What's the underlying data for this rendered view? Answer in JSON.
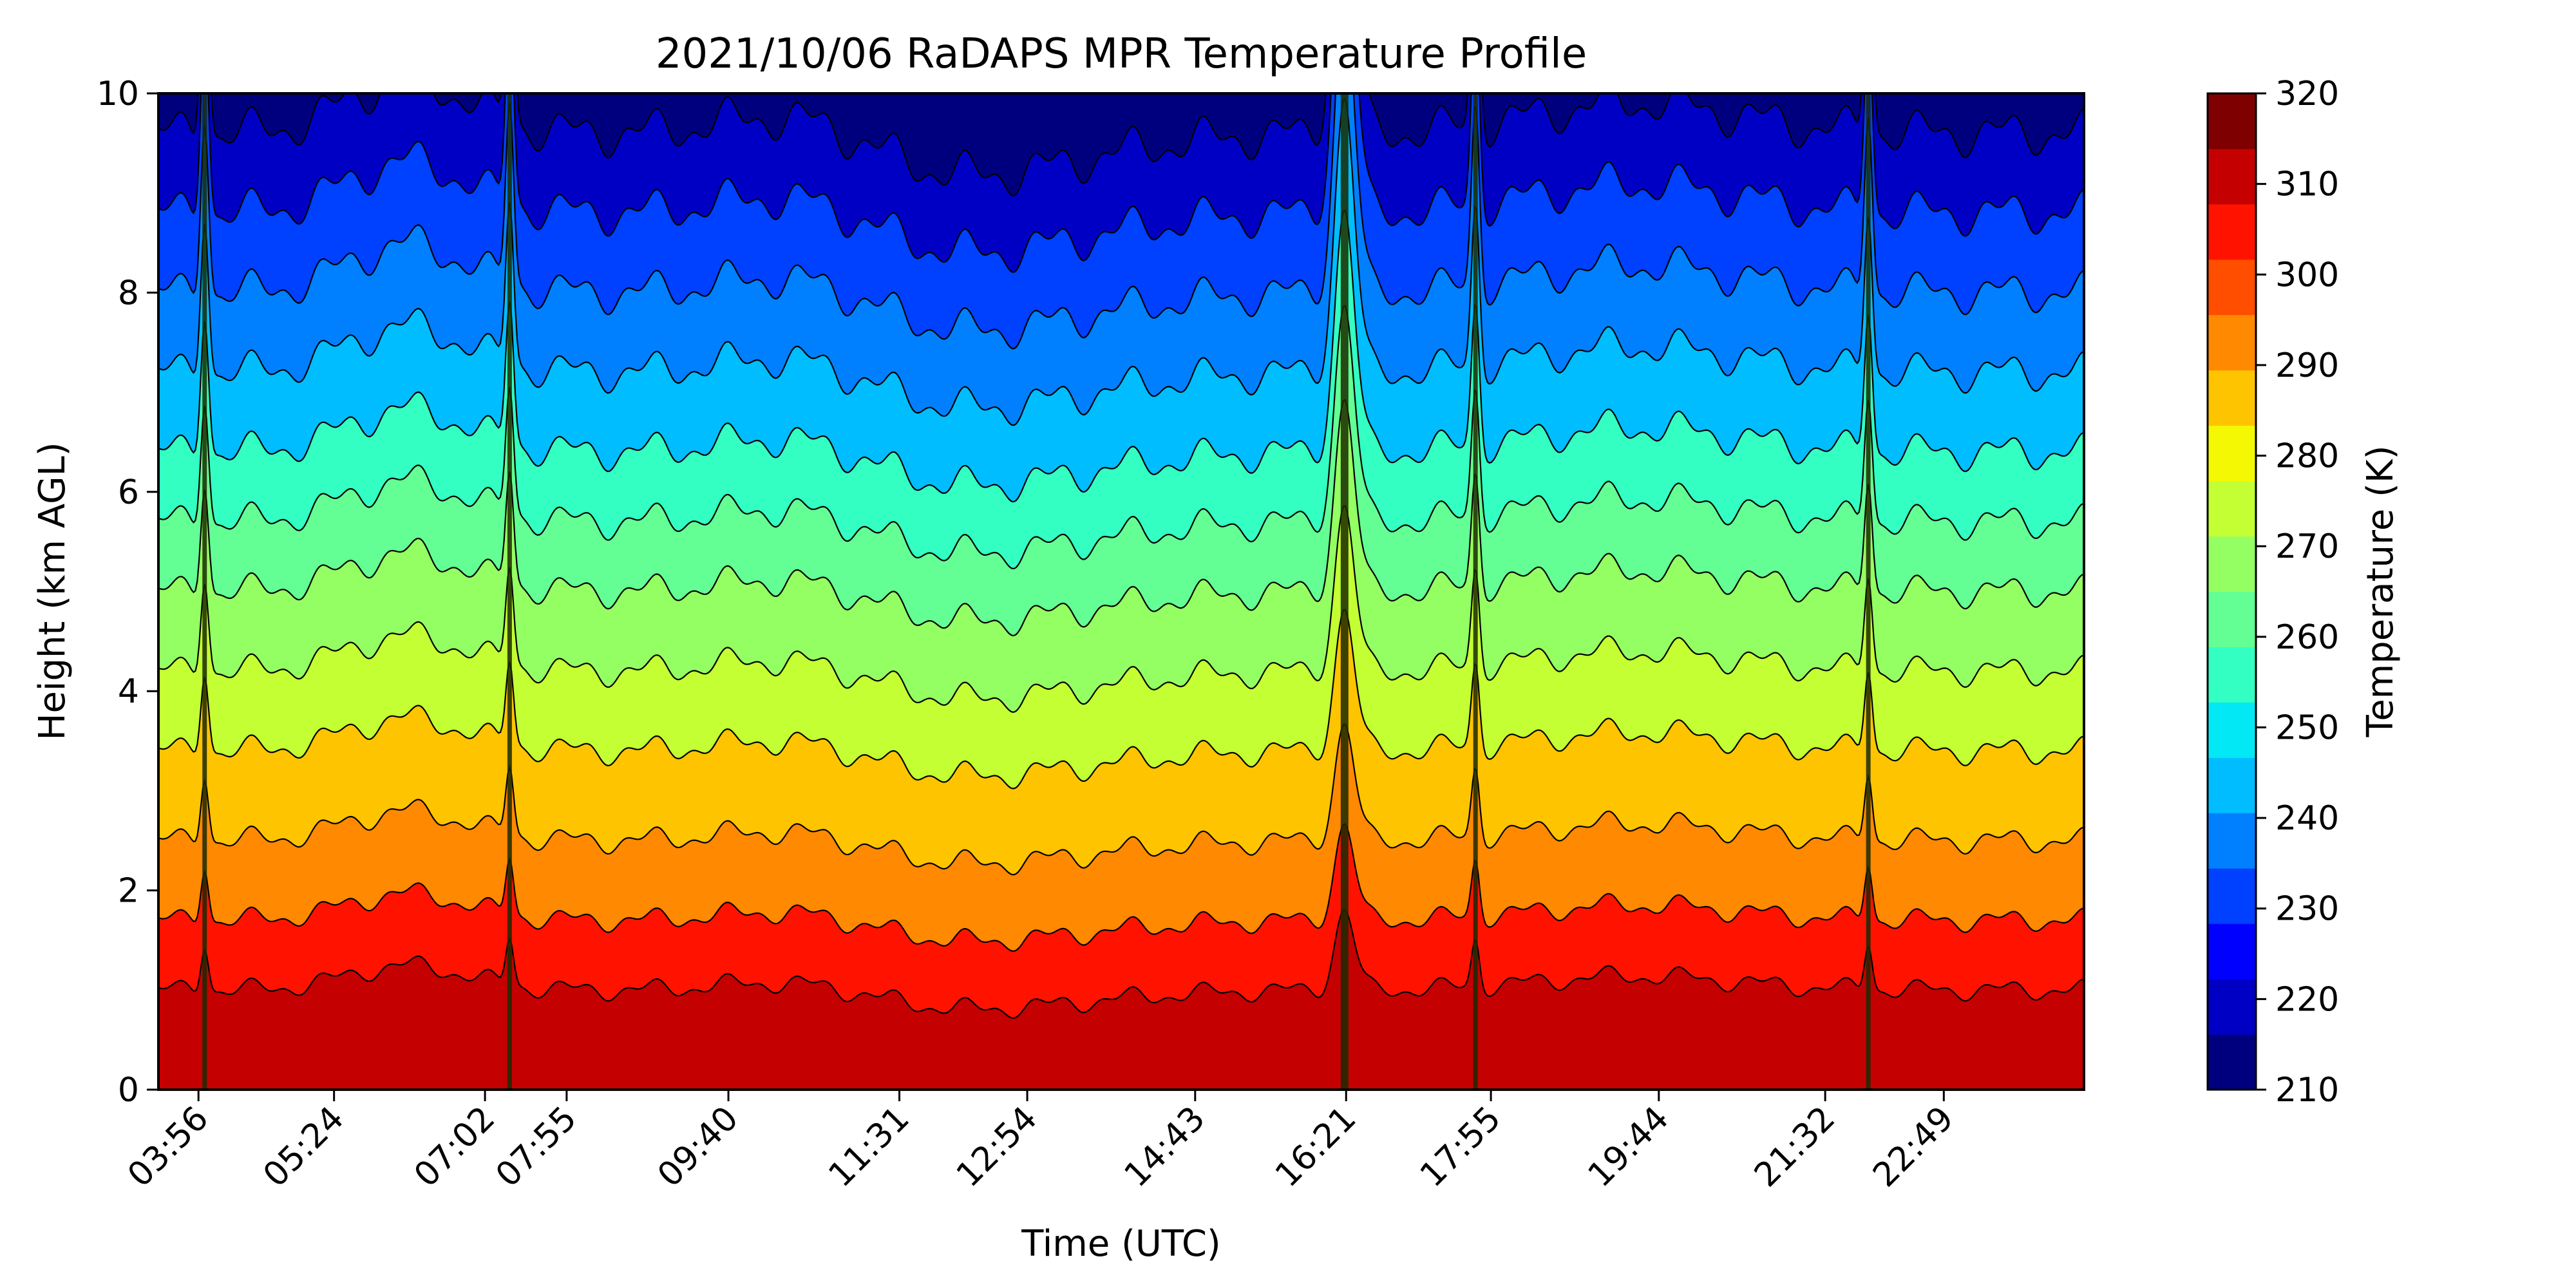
{
  "chart_data": {
    "type": "heatmap",
    "subtype": "filled-contour",
    "title": "2021/10/06 RaDAPS MPR Temperature Profile",
    "xlabel": "Time (UTC)",
    "ylabel": "Height (km AGL)",
    "x_tick_labels": [
      "03:56",
      "05:24",
      "07:02",
      "07:55",
      "09:40",
      "11:31",
      "12:54",
      "14:43",
      "16:21",
      "17:55",
      "19:44",
      "21:32",
      "22:49"
    ],
    "xlim": [
      "03:30",
      "24:20"
    ],
    "ylim": [
      0,
      10
    ],
    "y_ticks": [
      0,
      2,
      4,
      6,
      8,
      10
    ],
    "grid": false,
    "colorbar": {
      "label": "Temperature (K)",
      "range": [
        210,
        320
      ],
      "ticks": [
        210,
        220,
        230,
        240,
        250,
        260,
        270,
        280,
        290,
        300,
        310,
        320
      ],
      "level_step": 5,
      "colors": [
        "#00007f",
        "#0000c4",
        "#0000ff",
        "#0040ff",
        "#0080ff",
        "#00bdff",
        "#02e8f4",
        "#33ffc3",
        "#63ff94",
        "#94ff63",
        "#c3ff33",
        "#f4f802",
        "#ffc400",
        "#ff8900",
        "#ff4e00",
        "#ff1300",
        "#c40000",
        "#7f0000"
      ],
      "colormap": "jet"
    },
    "contour_heights_km": [
      1.0,
      1.7,
      2.5,
      3.4,
      4.2,
      5.0,
      5.7,
      6.4,
      7.2,
      8.0,
      8.8,
      9.6
    ],
    "spike_times": [
      "04:00",
      "07:18",
      "16:20",
      "17:45",
      "22:00"
    ],
    "background_color": "#ffffff"
  }
}
